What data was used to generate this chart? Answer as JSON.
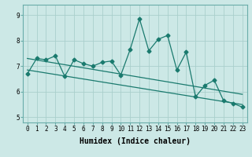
{
  "xlabel": "Humidex (Indice chaleur)",
  "xlim": [
    -0.5,
    23.5
  ],
  "ylim": [
    4.8,
    9.4
  ],
  "yticks": [
    5,
    6,
    7,
    8,
    9
  ],
  "xticks": [
    0,
    1,
    2,
    3,
    4,
    5,
    6,
    7,
    8,
    9,
    10,
    11,
    12,
    13,
    14,
    15,
    16,
    17,
    18,
    19,
    20,
    21,
    22,
    23
  ],
  "background_color": "#cce8e6",
  "grid_color": "#aacfcc",
  "line_color": "#1a7a6e",
  "data_line": [
    6.7,
    7.3,
    7.25,
    7.4,
    6.6,
    7.25,
    7.1,
    7.0,
    7.15,
    7.2,
    6.65,
    7.65,
    8.85,
    7.6,
    8.05,
    8.2,
    6.85,
    7.55,
    5.8,
    6.25,
    6.45,
    5.65,
    5.55,
    5.4
  ],
  "trend1_start": 7.3,
  "trend1_end": 5.9,
  "trend2_start": 6.85,
  "trend2_end": 5.5,
  "marker_size": 2.5,
  "line_width": 0.9,
  "tick_fontsize": 5.5,
  "label_fontsize": 7.0
}
